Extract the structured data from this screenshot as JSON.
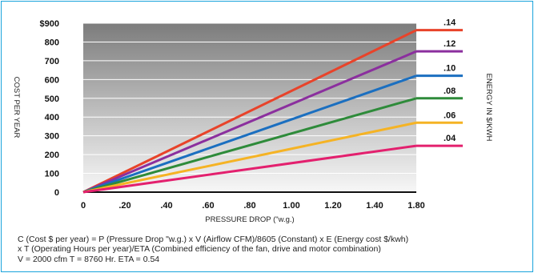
{
  "chart_data": {
    "type": "line",
    "xlabel": "PRESSURE DROP (\"w.g.)",
    "ylabel": "COST PER YEAR",
    "right_label": "ENERGY IN $/KWH",
    "x_ticks": [
      "0",
      ".20",
      ".40",
      ".60",
      ".80",
      "1.00",
      "1.20",
      "1.40",
      "1.80"
    ],
    "y_ticks": [
      "0",
      "100",
      "200",
      "300",
      "400",
      "500",
      "600",
      "700",
      "800",
      "$900"
    ],
    "xlim": [
      0,
      1.6
    ],
    "ylim": [
      0,
      900
    ],
    "grid": "horizontal",
    "series": [
      {
        "name": ".14",
        "color": "#e8432a",
        "x": [
          0,
          1.6
        ],
        "values": [
          0,
          863
        ]
      },
      {
        "name": ".12",
        "color": "#8b2f9e",
        "x": [
          0,
          1.6
        ],
        "values": [
          0,
          750
        ]
      },
      {
        "name": ".10",
        "color": "#1b6fc0",
        "x": [
          0,
          1.6
        ],
        "values": [
          0,
          620
        ]
      },
      {
        "name": ".08",
        "color": "#2e8b3a",
        "x": [
          0,
          1.6
        ],
        "values": [
          0,
          500
        ]
      },
      {
        "name": ".06",
        "color": "#f5b324",
        "x": [
          0,
          1.6
        ],
        "values": [
          0,
          370
        ]
      },
      {
        "name": ".04",
        "color": "#e3206e",
        "x": [
          0,
          1.6
        ],
        "values": [
          0,
          247
        ]
      }
    ]
  },
  "formula": {
    "line1": "C (Cost $ per year) = P (Pressure Drop \"w.g.) x V (Airflow CFM)/8605 (Constant) x E (Energy cost $/kwh)",
    "line2": "x T (Operating Hours per year)/ETA (Combined efficiency of the fan, drive and motor combination)",
    "line3": "V = 2000 cfm    T = 8760 Hr.    ETA = 0.54"
  }
}
